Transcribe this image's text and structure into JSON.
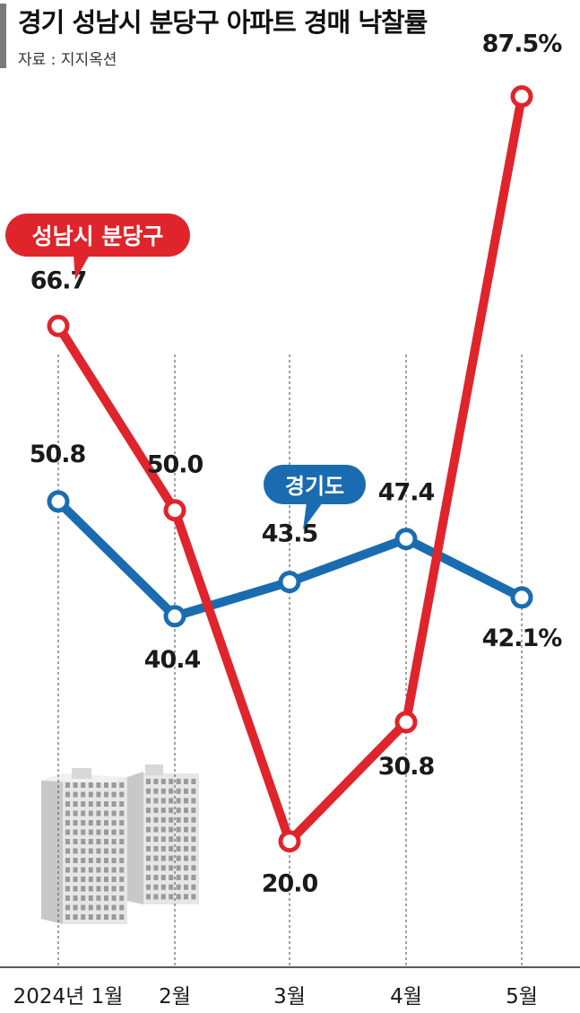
{
  "title": "경기 성남시 분당구 아파트 경매 낙찰률",
  "source": "자료 : 지지옥션",
  "colors": {
    "red": "#e0242b",
    "blue": "#1a6cb0",
    "text": "#1a1a1a",
    "grid": "#555555"
  },
  "chart_data": {
    "type": "line",
    "categories": [
      "2024년 1월",
      "2월",
      "3월",
      "4월",
      "5월"
    ],
    "series": [
      {
        "name": "성남시 분당구",
        "color": "#e0242b",
        "values": [
          66.7,
          50.0,
          20.0,
          30.8,
          87.5
        ],
        "labels": [
          "66.7",
          "50.0",
          "20.0",
          "30.8",
          "87.5%"
        ]
      },
      {
        "name": "경기도",
        "color": "#1a6cb0",
        "values": [
          50.8,
          40.4,
          43.5,
          47.4,
          42.1
        ],
        "labels": [
          "50.8",
          "40.4",
          "43.5",
          "47.4",
          "42.1%"
        ]
      }
    ],
    "unit": "%",
    "grid": "vertical dashed lines at each month",
    "legend": "callout labels on lines",
    "decoration": "apartment-buildings-illustration"
  }
}
